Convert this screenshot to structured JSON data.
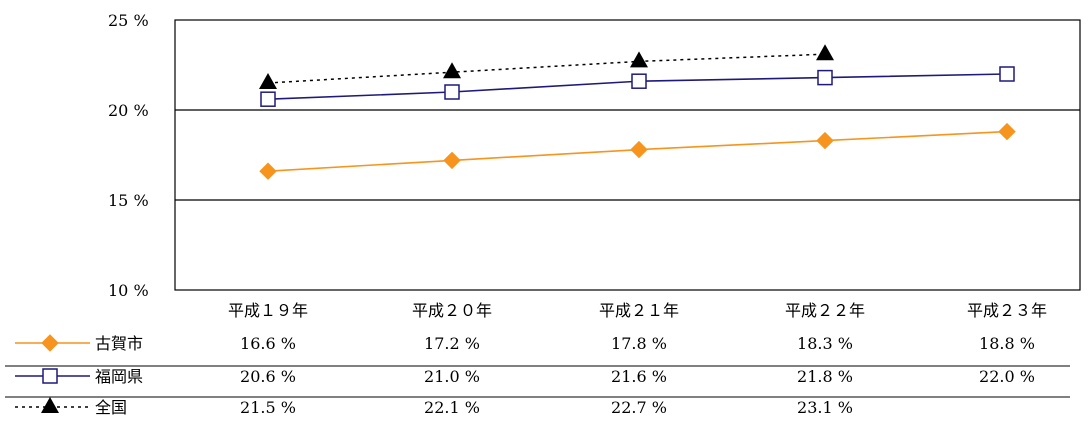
{
  "chart_data": {
    "type": "line",
    "title": "",
    "xlabel": "",
    "ylabel": "",
    "ylim": [
      10,
      25
    ],
    "y_ticks": [
      "10 %",
      "15 %",
      "20 %",
      "25 %"
    ],
    "categories": [
      "平成１９年",
      "平成２０年",
      "平成２１年",
      "平成２２年",
      "平成２３年"
    ],
    "grid": "horizontal",
    "legend_placement": "data-table-left",
    "series": [
      {
        "name": "古賀市",
        "values": [
          16.6,
          17.2,
          17.8,
          18.3,
          18.8
        ],
        "labels": [
          "16.6 %",
          "17.2 %",
          "17.8 %",
          "18.3 %",
          "18.8 %"
        ],
        "color": "#F7941D",
        "marker": "diamond",
        "line": "solid"
      },
      {
        "name": "福岡県",
        "values": [
          20.6,
          21.0,
          21.6,
          21.8,
          22.0
        ],
        "labels": [
          "20.6 %",
          "21.0 %",
          "21.6 %",
          "21.8 %",
          "22.0 %"
        ],
        "color": "#1F1A7A",
        "marker": "square-open",
        "line": "solid"
      },
      {
        "name": "全国",
        "values": [
          21.5,
          22.1,
          22.7,
          23.1,
          null
        ],
        "labels": [
          "21.5 %",
          "22.1 %",
          "22.7 %",
          "23.1 %",
          ""
        ],
        "color": "#000000",
        "marker": "triangle",
        "line": "dotted"
      }
    ]
  }
}
